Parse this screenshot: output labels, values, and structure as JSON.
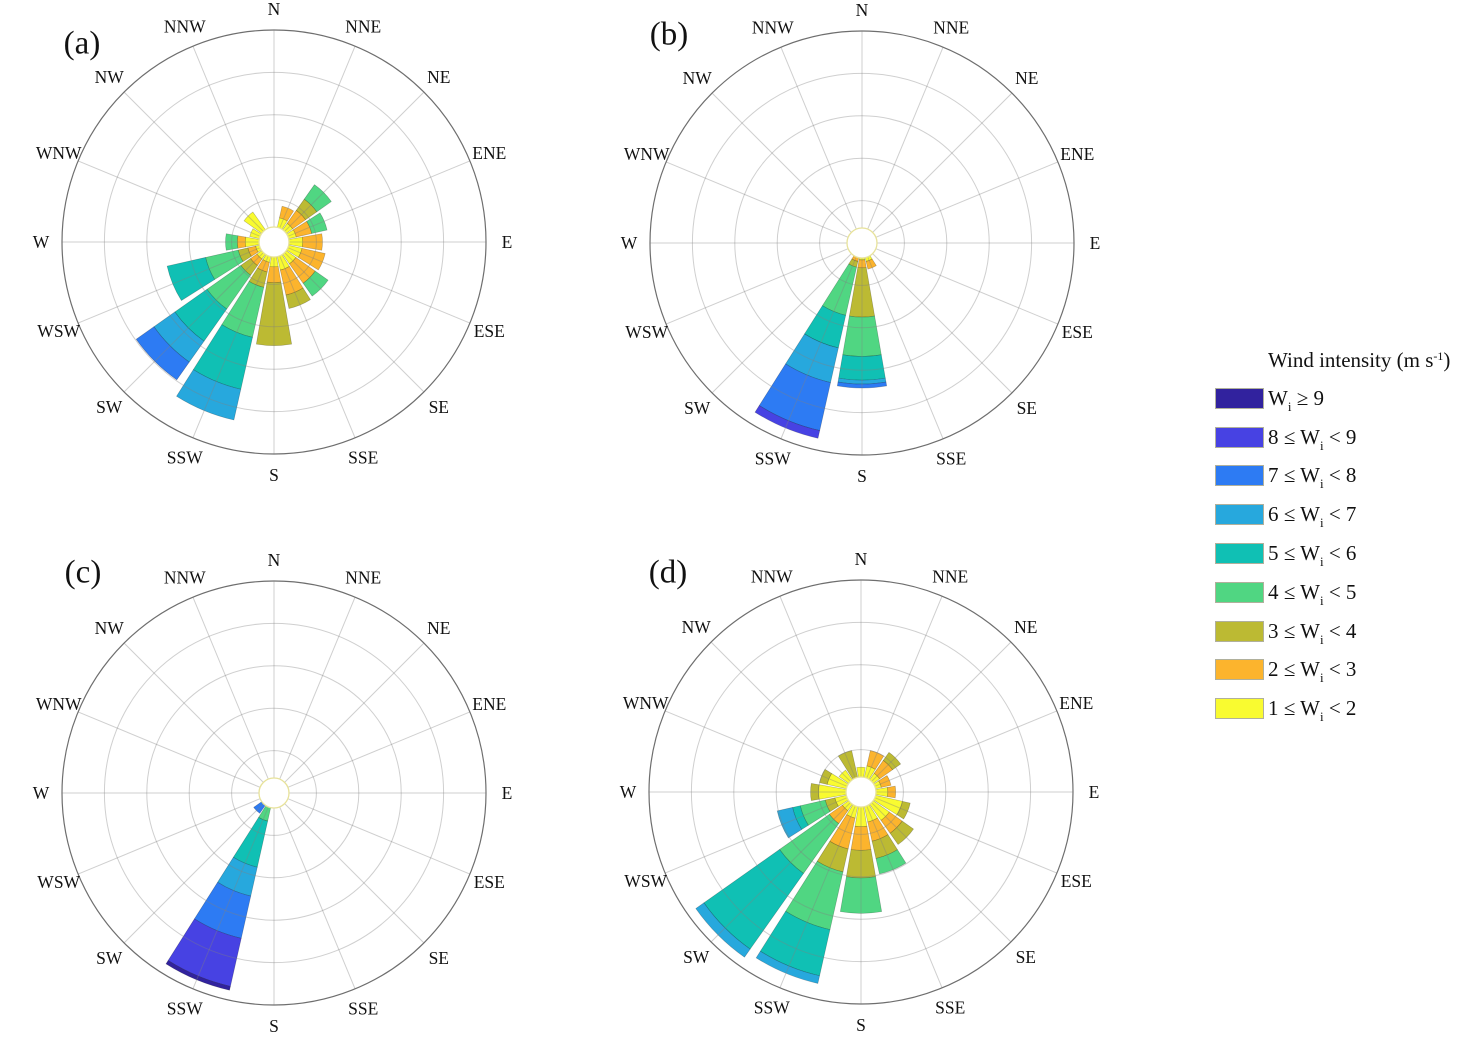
{
  "figure_background": "#ffffff",
  "panel_labels": [
    "(a)",
    "(b)",
    "(c)",
    "(d)"
  ],
  "legend": {
    "title_pre": "Wind intensity (m s",
    "title_sup": "-1",
    "title_post": ")",
    "entries": [
      {
        "pre": "W",
        "sub": "i",
        "post": " ≥ 9",
        "color": "#31229e"
      },
      {
        "pre": "8 ≤ W",
        "sub": "i",
        "post": " < 9",
        "color": "#4742e3"
      },
      {
        "pre": "7 ≤ W",
        "sub": "i",
        "post": " < 8",
        "color": "#2d7bf3"
      },
      {
        "pre": "6 ≤ W",
        "sub": "i",
        "post": " < 7",
        "color": "#27a8dd"
      },
      {
        "pre": "5 ≤ W",
        "sub": "i",
        "post": " < 6",
        "color": "#10c0b4"
      },
      {
        "pre": "4 ≤ W",
        "sub": "i",
        "post": " < 5",
        "color": "#50d682"
      },
      {
        "pre": "3 ≤ W",
        "sub": "i",
        "post": " < 4",
        "color": "#bcba33"
      },
      {
        "pre": "2 ≤ W",
        "sub": "i",
        "post": " < 3",
        "color": "#fcb42d"
      },
      {
        "pre": "1 ≤ W",
        "sub": "i",
        "post": " < 2",
        "color": "#f9fb30"
      }
    ]
  },
  "chart_data": {
    "type": "windrose",
    "note": "Four wind-rose subplots (a)-(d). Each direction sector is a stacked radial bar; segment values are radial-extent fractions (0-1) of the unlabeled frequency axis, stacked from the center hole outward (lowest speed bin innermost).",
    "directions": [
      "N",
      "NNE",
      "NE",
      "ENE",
      "E",
      "ESE",
      "SE",
      "SSE",
      "S",
      "SSW",
      "SW",
      "WSW",
      "W",
      "WNW",
      "NW",
      "NNW"
    ],
    "ring_fractions": [
      0.2,
      0.4,
      0.6,
      0.8,
      1.0
    ],
    "bins": [
      {
        "id": "b1",
        "label": "1 ≤ Wi < 2",
        "color": "#f9fb30"
      },
      {
        "id": "b2",
        "label": "2 ≤ Wi < 3",
        "color": "#fcb42d"
      },
      {
        "id": "b3",
        "label": "3 ≤ Wi < 4",
        "color": "#bcba33"
      },
      {
        "id": "b4",
        "label": "4 ≤ Wi < 5",
        "color": "#50d682"
      },
      {
        "id": "b5",
        "label": "5 ≤ Wi < 6",
        "color": "#10c0b4"
      },
      {
        "id": "b6",
        "label": "6 ≤ Wi < 7",
        "color": "#27a8dd"
      },
      {
        "id": "b7",
        "label": "7 ≤ Wi < 8",
        "color": "#2d7bf3"
      },
      {
        "id": "b8",
        "label": "8 ≤ Wi < 9",
        "color": "#4742e3"
      },
      {
        "id": "b9",
        "label": "Wi ≥ 9",
        "color": "#31229e"
      }
    ],
    "panels": [
      {
        "label": "(a)",
        "segments": {
          "NNE": [
            [
              "b1",
              0.05
            ],
            [
              "b2",
              0.06
            ]
          ],
          "NE": [
            [
              "b1",
              0.04
            ],
            [
              "b2",
              0.08
            ],
            [
              "b3",
              0.07
            ],
            [
              "b4",
              0.09
            ]
          ],
          "ENE": [
            [
              "b1",
              0.04
            ],
            [
              "b2",
              0.08
            ],
            [
              "b4",
              0.08
            ]
          ],
          "E": [
            [
              "b1",
              0.07
            ],
            [
              "b2",
              0.1
            ]
          ],
          "ESE": [
            [
              "b1",
              0.07
            ],
            [
              "b2",
              0.12
            ]
          ],
          "SE": [
            [
              "b1",
              0.06
            ],
            [
              "b2",
              0.12
            ],
            [
              "b4",
              0.08
            ]
          ],
          "SSE": [
            [
              "b1",
              0.07
            ],
            [
              "b2",
              0.13
            ],
            [
              "b3",
              0.07
            ]
          ],
          "S": [
            [
              "b1",
              0.05
            ],
            [
              "b2",
              0.08
            ],
            [
              "b3",
              0.32
            ]
          ],
          "SSW": [
            [
              "b1",
              0.03
            ],
            [
              "b2",
              0.05
            ],
            [
              "b3",
              0.08
            ],
            [
              "b4",
              0.26
            ],
            [
              "b5",
              0.27
            ],
            [
              "b6",
              0.16
            ]
          ],
          "SW": [
            [
              "b1",
              0.03
            ],
            [
              "b2",
              0.04
            ],
            [
              "b3",
              0.06
            ],
            [
              "b4",
              0.21
            ],
            [
              "b5",
              0.2
            ],
            [
              "b6",
              0.13
            ],
            [
              "b7",
              0.11
            ]
          ],
          "WSW": [
            [
              "b1",
              0.02
            ],
            [
              "b2",
              0.04
            ],
            [
              "b3",
              0.05
            ],
            [
              "b4",
              0.17
            ],
            [
              "b5",
              0.2
            ]
          ],
          "W": [
            [
              "b1",
              0.07
            ],
            [
              "b2",
              0.04
            ],
            [
              "b4",
              0.06
            ]
          ],
          "WNW": [
            [
              "b1",
              0.05
            ]
          ],
          "NW": [
            [
              "b1",
              0.11
            ]
          ]
        }
      },
      {
        "label": "(b)",
        "segments": {
          "SSE": [
            [
              "b1",
              0.02
            ],
            [
              "b2",
              0.04
            ]
          ],
          "S": [
            [
              "b1",
              0.01
            ],
            [
              "b2",
              0.04
            ],
            [
              "b3",
              0.25
            ],
            [
              "b4",
              0.2
            ],
            [
              "b5",
              0.12
            ],
            [
              "b6",
              0.02
            ],
            [
              "b7",
              0.02
            ]
          ],
          "SSW": [
            [
              "b2",
              0.02
            ],
            [
              "b3",
              0.03
            ],
            [
              "b4",
              0.25
            ],
            [
              "b5",
              0.17
            ],
            [
              "b6",
              0.18
            ],
            [
              "b7",
              0.25
            ],
            [
              "b8",
              0.04
            ]
          ]
        }
      },
      {
        "label": "(c)",
        "segments": {
          "SW": [
            [
              "b7",
              0.05
            ]
          ],
          "SSW": [
            [
              "b4",
              0.07
            ],
            [
              "b5",
              0.24
            ],
            [
              "b6",
              0.15
            ],
            [
              "b7",
              0.22
            ],
            [
              "b8",
              0.25
            ],
            [
              "b9",
              0.02
            ]
          ]
        }
      },
      {
        "label": "(d)",
        "segments": {
          "N": [
            [
              "b1",
              0.05
            ]
          ],
          "NNE": [
            [
              "b1",
              0.06
            ],
            [
              "b2",
              0.08
            ]
          ],
          "NE": [
            [
              "b1",
              0.04
            ],
            [
              "b2",
              0.08
            ],
            [
              "b3",
              0.05
            ]
          ],
          "ENE": [
            [
              "b1",
              0.03
            ],
            [
              "b2",
              0.05
            ]
          ],
          "E": [
            [
              "b1",
              0.06
            ],
            [
              "b2",
              0.04
            ]
          ],
          "ESE": [
            [
              "b1",
              0.14
            ],
            [
              "b3",
              0.04
            ]
          ],
          "SE": [
            [
              "b1",
              0.1
            ],
            [
              "b2",
              0.08
            ],
            [
              "b3",
              0.07
            ]
          ],
          "SSE": [
            [
              "b1",
              0.08
            ],
            [
              "b2",
              0.1
            ],
            [
              "b3",
              0.09
            ],
            [
              "b4",
              0.08
            ]
          ],
          "S": [
            [
              "b1",
              0.1
            ],
            [
              "b2",
              0.12
            ],
            [
              "b3",
              0.14
            ],
            [
              "b4",
              0.18
            ]
          ],
          "SSW": [
            [
              "b1",
              0.06
            ],
            [
              "b2",
              0.16
            ],
            [
              "b3",
              0.12
            ],
            [
              "b4",
              0.3
            ],
            [
              "b5",
              0.24
            ],
            [
              "b6",
              0.04
            ]
          ],
          "SW": [
            [
              "b1",
              0.04
            ],
            [
              "b2",
              0.08
            ],
            [
              "b4",
              0.31
            ],
            [
              "b5",
              0.47
            ],
            [
              "b6",
              0.05
            ]
          ],
          "WSW": [
            [
              "b1",
              0.06
            ],
            [
              "b3",
              0.05
            ],
            [
              "b4",
              0.13
            ],
            [
              "b5",
              0.04
            ],
            [
              "b6",
              0.08
            ]
          ],
          "W": [
            [
              "b1",
              0.14
            ],
            [
              "b3",
              0.04
            ]
          ],
          "WNW": [
            [
              "b1",
              0.1
            ],
            [
              "b3",
              0.04
            ]
          ],
          "NW": [
            [
              "b1",
              0.06
            ]
          ],
          "NNW": [
            [
              "b3",
              0.14
            ]
          ]
        }
      }
    ]
  }
}
